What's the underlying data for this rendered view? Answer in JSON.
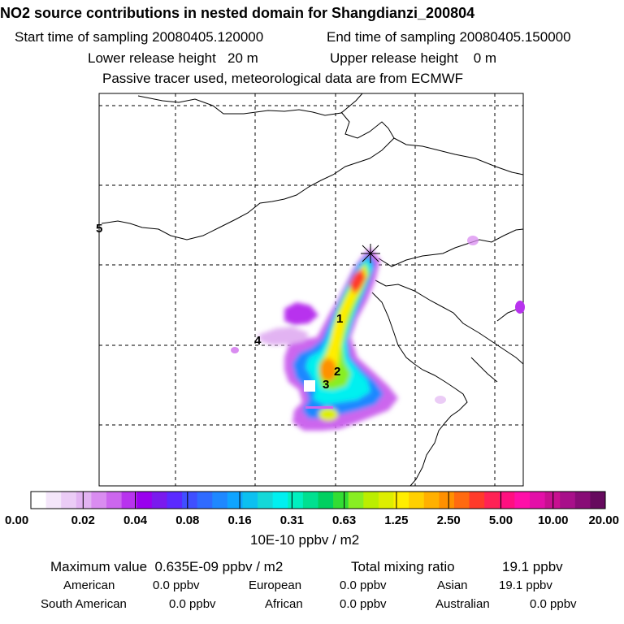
{
  "header": {
    "title": "NO2 source contributions in nested domain for Shangdianzi_200804",
    "start_label": "Start time of sampling 20080405.120000",
    "end_label": "End time of sampling 20080405.150000",
    "lower_label": "Lower release height   20 m",
    "upper_label": "Upper release height    0 m",
    "tracer_label": "Passive tracer used, meteorological data are from ECMWF"
  },
  "map": {
    "site_markers": [
      "1",
      "2",
      "3",
      "4",
      "5"
    ]
  },
  "colorbar": {
    "tick_labels": [
      "0.00",
      "0.02",
      "0.04",
      "0.08",
      "0.16",
      "0.31",
      "0.63",
      "1.25",
      "2.50",
      "5.00",
      "10.00",
      "20.00"
    ],
    "unit_label": "10E-10 ppbv / m2",
    "colors": [
      "#ffffff",
      "#f4e6fa",
      "#ebccf6",
      "#e2b3f2",
      "#d98cf0",
      "#cc66ee",
      "#b833ee",
      "#9900ee",
      "#7a1aee",
      "#5b2aff",
      "#3f4fff",
      "#2f6bff",
      "#1e88ff",
      "#0fa4ff",
      "#0cc0f0",
      "#14d8d8",
      "#00f0f0",
      "#00f0c0",
      "#00e090",
      "#00d060",
      "#33dd33",
      "#88ee22",
      "#bbee00",
      "#ddee00",
      "#ffee00",
      "#ffd000",
      "#ffb000",
      "#ff9000",
      "#ff6a10",
      "#ff3a2a",
      "#ff2255",
      "#ff1080",
      "#ff10a8",
      "#e310a8",
      "#c81090",
      "#a8108a",
      "#880c76",
      "#660a5e"
    ]
  },
  "summary": {
    "max_label": "Maximum value  0.635E-09 ppbv / m2",
    "total_label": "Total mixing ratio",
    "total_value": "19.1 ppbv",
    "american_label": "American",
    "american_value": "0.0 ppbv",
    "european_label": "European",
    "european_value": "0.0 ppbv",
    "asian_label": "Asian",
    "asian_value": "19.1 ppbv",
    "south_american_label": "South American",
    "south_american_value": "0.0 ppbv",
    "african_label": "African",
    "african_value": "0.0 ppbv",
    "australian_label": "Australian",
    "australian_value": "0.0 ppbv"
  }
}
